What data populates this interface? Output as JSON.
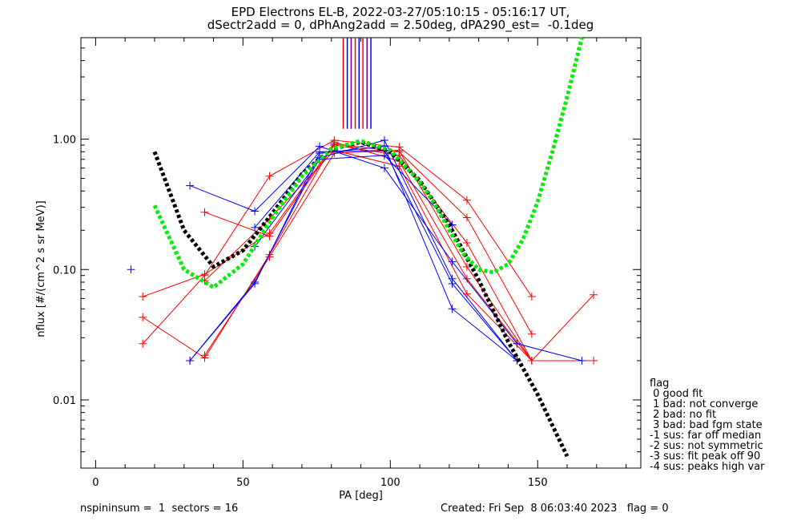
{
  "title_line1": "EPD Electrons EL-B, 2022-03-27/05:10:15 - 05:16:17 UT,",
  "title_line2": "dSectr2add = 0, dPhAng2add = 2.50deg, dPA290_est=  -0.1deg",
  "footer_left": "nspininsum =  1  sectors = 16",
  "footer_right": "Created: Fri Sep  8 06:03:40 2023   flag = 0",
  "legend": {
    "title": "flag",
    "items": [
      " 0 good fit",
      " 1 bad: not converge",
      " 2 bad: no fit",
      " 3 bad: bad fgm state",
      "-1 sus: far off median",
      "-2 sus: not symmetric",
      "-3 sus: fit peak off 90",
      "-4 sus: peaks high var"
    ]
  },
  "chart_data": {
    "type": "line",
    "xlabel": "PA [deg]",
    "ylabel": "nflux [#/(cm^2 s sr MeV)]",
    "xlim": [
      -5,
      185
    ],
    "ylim": [
      0.003,
      6.0
    ],
    "yscale": "log",
    "x_ticks": [
      0,
      50,
      100,
      150
    ],
    "x_tick_labels": [
      "0",
      "50",
      "100",
      "150"
    ],
    "y_ticks": [
      0.01,
      0.1,
      1.0
    ],
    "y_tick_labels": [
      "0.01",
      "0.10",
      "1.00"
    ],
    "colors": {
      "red": "#ff0000",
      "blue": "#0000ff",
      "green": "#00ee00",
      "black": "#000000",
      "purple": "#7000a0"
    },
    "peak_markers": {
      "y_range": [
        1.2,
        6.0
      ],
      "x": [
        84.0,
        85.4,
        86.7,
        88.1,
        89.4,
        90.7,
        92.1,
        93.4
      ],
      "colors": [
        "#ff0000",
        "#0000ff",
        "#7000a0",
        "#ff0000",
        "#0000ff",
        "#ff0000",
        "#7000a0",
        "#0000ff"
      ]
    },
    "series": [
      {
        "color": "red",
        "x": [
          16,
          37,
          59,
          81,
          103,
          126,
          148
        ],
        "y": [
          0.027,
          0.09,
          0.52,
          0.98,
          0.87,
          0.34,
          0.062
        ]
      },
      {
        "color": "red",
        "x": [
          16,
          37,
          59,
          81,
          103,
          126,
          148
        ],
        "y": [
          0.062,
          0.092,
          0.19,
          0.92,
          0.8,
          0.25,
          0.032
        ]
      },
      {
        "color": "red",
        "x": [
          16,
          37,
          59,
          81,
          103,
          126,
          148,
          169
        ],
        "y": [
          0.043,
          0.021,
          0.13,
          0.95,
          0.68,
          0.085,
          0.02,
          0.02
        ]
      },
      {
        "color": "red",
        "x": [
          37,
          59,
          81,
          103,
          126,
          148,
          169
        ],
        "y": [
          0.275,
          0.18,
          0.9,
          0.75,
          0.16,
          0.02,
          0.064
        ]
      },
      {
        "color": "red",
        "x": [
          37,
          59,
          81,
          103,
          126,
          148
        ],
        "y": [
          0.082,
          0.245,
          0.82,
          0.62,
          0.065,
          0.02
        ]
      },
      {
        "color": "red",
        "x": [
          37,
          59,
          81,
          103,
          126,
          148
        ],
        "y": [
          0.022,
          0.125,
          0.78,
          0.82,
          0.105,
          0.02
        ]
      },
      {
        "color": "blue",
        "x": [
          32,
          54,
          76,
          98,
          121,
          143,
          165
        ],
        "y": [
          0.44,
          0.28,
          0.88,
          0.6,
          0.115,
          0.027,
          0.02
        ]
      },
      {
        "color": "blue",
        "x": [
          32,
          54,
          76,
          98,
          121,
          143
        ],
        "y": [
          0.02,
          0.08,
          0.72,
          0.98,
          0.085,
          0.02
        ]
      },
      {
        "color": "blue",
        "x": [
          32,
          54,
          76,
          98,
          121,
          143
        ],
        "y": [
          0.02,
          0.078,
          0.78,
          0.88,
          0.05,
          0.02
        ]
      },
      {
        "color": "blue",
        "x": [
          12
        ],
        "y": [
          0.1
        ]
      },
      {
        "color": "blue",
        "x": [
          54,
          76,
          98,
          121,
          143
        ],
        "y": [
          0.21,
          0.8,
          0.82,
          0.078,
          0.02
        ]
      },
      {
        "color": "blue",
        "x": [
          54,
          76,
          98,
          121
        ],
        "y": [
          0.15,
          0.7,
          0.75,
          0.22
        ]
      }
    ],
    "fits": [
      {
        "color": "black",
        "style": "dashed",
        "x": [
          20,
          30,
          40,
          50,
          60,
          70,
          80,
          90,
          100,
          110,
          120,
          130,
          140,
          150,
          160
        ],
        "y": [
          0.8,
          0.2,
          0.105,
          0.14,
          0.27,
          0.54,
          0.84,
          0.95,
          0.8,
          0.48,
          0.22,
          0.083,
          0.028,
          0.011,
          0.0037
        ]
      },
      {
        "color": "green",
        "style": "dashed",
        "x": [
          20,
          30,
          40,
          50,
          60,
          70,
          80,
          90,
          100,
          110,
          115,
          120,
          125,
          130,
          135,
          140,
          145,
          150,
          155,
          160,
          165
        ],
        "y": [
          0.31,
          0.1,
          0.073,
          0.11,
          0.25,
          0.52,
          0.84,
          0.97,
          0.82,
          0.47,
          0.32,
          0.2,
          0.13,
          0.1,
          0.095,
          0.11,
          0.17,
          0.33,
          0.8,
          2.1,
          6.0
        ]
      }
    ]
  }
}
